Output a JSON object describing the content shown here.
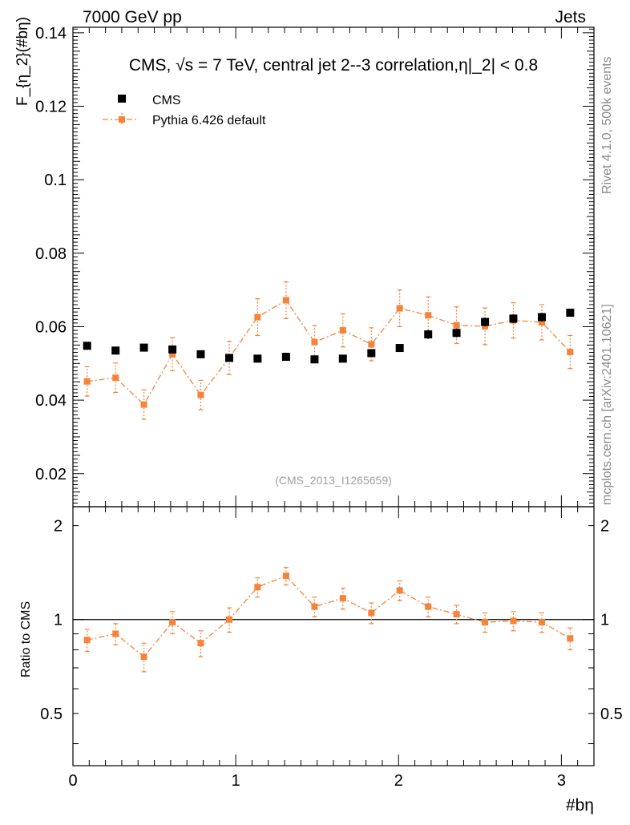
{
  "header": {
    "left": "7000 GeV pp",
    "right": "Jets"
  },
  "side_labels": {
    "rivet": "Rivet 4.1.0,  500k events",
    "mcplots": "mcplots.cern.ch [arXiv:2401.10621]"
  },
  "chart_data": {
    "type": "scatter",
    "title": "CMS, √s = 7 TeV, central jet 2--3 correlation,η|_2| < 0.8",
    "analysis_tag": "(CMS_2013_I1265659)",
    "xlabel": "#bη",
    "ylabel": "F_{η_2}(#bη)",
    "ratio_ylabel": "Ratio to CMS",
    "xlim": [
      0,
      3.2
    ],
    "ylim": [
      0.011,
      0.1415
    ],
    "ratio_ylim": [
      0.34,
      2.3
    ],
    "xticks": [
      0,
      1,
      2,
      3
    ],
    "xtick_labels": [
      "0",
      "1",
      "2",
      "3"
    ],
    "yticks": [
      0.02,
      0.04,
      0.06,
      0.08,
      0.1,
      0.12,
      0.14
    ],
    "ytick_labels": [
      "0.02",
      "0.04",
      "0.06",
      "0.08",
      "0.1",
      "0.12",
      "0.14"
    ],
    "ratio_yticks": [
      0.5,
      1,
      2
    ],
    "ratio_ytick_labels": [
      "0.5",
      "1",
      "2"
    ],
    "legend": [
      "CMS",
      "Pythia 6.426 default"
    ],
    "legend_position": "top-left",
    "x": [
      0.087,
      0.262,
      0.436,
      0.611,
      0.785,
      0.96,
      1.134,
      1.309,
      1.484,
      1.658,
      1.833,
      2.007,
      2.182,
      2.356,
      2.531,
      2.705,
      2.88,
      3.054
    ],
    "series": [
      {
        "name": "CMS",
        "color": "#000000",
        "marker": "square",
        "values": [
          0.0548,
          0.0535,
          0.0543,
          0.0538,
          0.0525,
          0.0515,
          0.0513,
          0.0518,
          0.0511,
          0.0513,
          0.0528,
          0.0542,
          0.0579,
          0.0583,
          0.0613,
          0.0622,
          0.0626,
          0.0638
        ],
        "errors": [
          0.0004,
          0.0004,
          0.0004,
          0.0004,
          0.0004,
          0.0004,
          0.0004,
          0.0004,
          0.0004,
          0.0004,
          0.0006,
          0.0004,
          0.0012,
          0.0012,
          0.0012,
          0.0012,
          0.0012,
          0.0004
        ]
      },
      {
        "name": "Pythia 6.426 default",
        "color": "#f5833a",
        "marker": "square",
        "line": "dash-dot",
        "values": [
          0.0451,
          0.0461,
          0.0388,
          0.0525,
          0.0414,
          0.0515,
          0.0626,
          0.0672,
          0.0558,
          0.059,
          0.0552,
          0.065,
          0.0631,
          0.0604,
          0.0601,
          0.0617,
          0.0612,
          0.0531
        ],
        "errors": [
          0.004,
          0.004,
          0.004,
          0.0045,
          0.004,
          0.0045,
          0.005,
          0.005,
          0.0045,
          0.0045,
          0.0045,
          0.005,
          0.005,
          0.005,
          0.005,
          0.0048,
          0.0048,
          0.0045
        ]
      }
    ],
    "ratio": {
      "values": [
        0.86,
        0.9,
        0.76,
        0.98,
        0.84,
        1.0,
        1.27,
        1.38,
        1.1,
        1.17,
        1.05,
        1.24,
        1.1,
        1.04,
        0.98,
        0.99,
        0.98,
        0.87
      ],
      "errors": [
        0.07,
        0.07,
        0.08,
        0.08,
        0.08,
        0.09,
        0.09,
        0.09,
        0.08,
        0.09,
        0.08,
        0.09,
        0.08,
        0.07,
        0.07,
        0.07,
        0.07,
        0.07
      ]
    }
  }
}
